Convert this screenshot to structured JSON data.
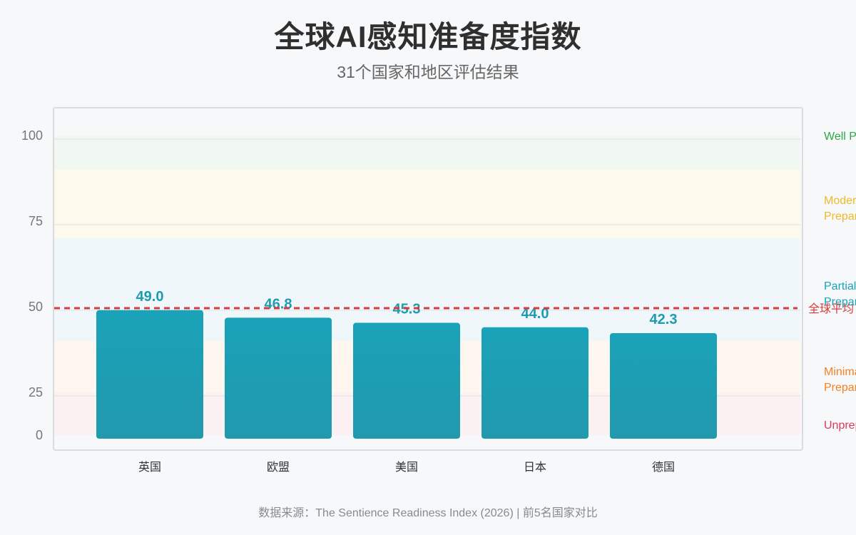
{
  "title": "全球AI感知准备度指数",
  "subtitle": "31个国家和地区评估结果",
  "source": "数据来源：The Sentience Readiness Index (2026) | 前5名国家对比",
  "chart_data": {
    "type": "bar",
    "categories": [
      "英国",
      "欧盟",
      "美国",
      "日本",
      "德国"
    ],
    "values": [
      49.0,
      46.8,
      45.3,
      44.0,
      42.3
    ],
    "value_labels": [
      "49.0",
      "46.8",
      "45.3",
      "44.0",
      "42.3"
    ],
    "yticks": [
      "100",
      "75",
      "50",
      "25",
      "0"
    ],
    "ylim": [
      0,
      100
    ],
    "grid": true,
    "bar_color": "#1aa2b8",
    "reference_line": {
      "label": "全球平均",
      "color": "#d93a3a",
      "value": 50
    },
    "bands": [
      {
        "label": "Well Prepared",
        "color": "#2ca84a",
        "range": [
          90,
          100
        ]
      },
      {
        "label": "Moderately Prepared",
        "color": "#f0b92a",
        "range": [
          70,
          90
        ]
      },
      {
        "label": "Partially Prepared",
        "color": "#1aa2b8",
        "range": [
          40,
          70
        ]
      },
      {
        "label": "Minimally Prepared",
        "color": "#f58220",
        "range": [
          25,
          40
        ]
      },
      {
        "label": "Unprepared",
        "color": "#d93a5a",
        "range": [
          0,
          25
        ]
      }
    ]
  }
}
